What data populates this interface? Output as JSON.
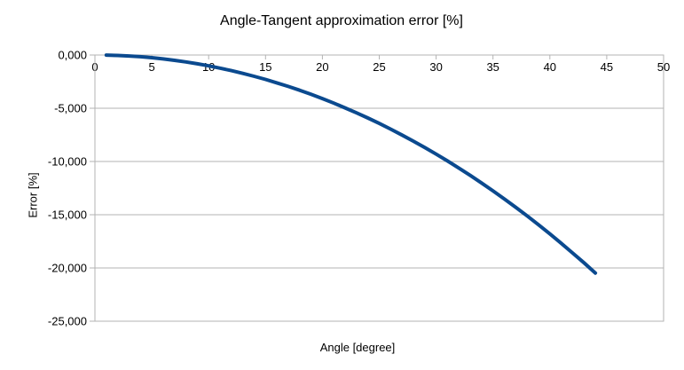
{
  "chart_data": {
    "type": "line",
    "title": "Angle-Tangent approximation error [%]",
    "xlabel": "Angle [degree]",
    "ylabel": "Error [%]",
    "xlim": [
      0,
      50
    ],
    "ylim": [
      -25,
      0
    ],
    "x_ticks": [
      0,
      5,
      10,
      15,
      20,
      25,
      30,
      35,
      40,
      45,
      50
    ],
    "x_tick_labels": [
      "0",
      "5",
      "10",
      "15",
      "20",
      "25",
      "30",
      "35",
      "40",
      "45",
      "50"
    ],
    "y_ticks": [
      0,
      -5,
      -10,
      -15,
      -20,
      -25
    ],
    "y_tick_labels": [
      "0,000",
      "-5,000",
      "-10,000",
      "-15,000",
      "-20,000",
      "-25,000"
    ],
    "grid": "horizontal-only",
    "legend": "none",
    "grid_color": "#b3b3b3",
    "axis_color": "#b3b3b3",
    "text_color": "#000000",
    "background": "#ffffff",
    "series": [
      {
        "name": "Angle-Tangent approximation error",
        "color": "#0b4a8f",
        "line_width": 4,
        "x": [
          1,
          2,
          3,
          4,
          5,
          6,
          7,
          8,
          9,
          10,
          11,
          12,
          13,
          14,
          15,
          16,
          17,
          18,
          19,
          20,
          21,
          22,
          23,
          24,
          25,
          26,
          27,
          28,
          29,
          30,
          31,
          32,
          33,
          34,
          35,
          36,
          37,
          38,
          39,
          40,
          41,
          42,
          43,
          44
        ],
        "y": [
          -0.01,
          -0.041,
          -0.091,
          -0.162,
          -0.254,
          -0.366,
          -0.498,
          -0.651,
          -0.824,
          -1.018,
          -1.232,
          -1.466,
          -1.722,
          -1.998,
          -2.295,
          -2.613,
          -2.952,
          -3.312,
          -3.693,
          -4.095,
          -4.518,
          -4.963,
          -5.43,
          -5.918,
          -6.428,
          -6.96,
          -7.514,
          -8.09,
          -8.689,
          -9.31,
          -9.954,
          -10.62,
          -11.31,
          -12.023,
          -12.759,
          -13.519,
          -14.303,
          -15.111,
          -15.943,
          -16.8,
          -17.681,
          -18.588,
          -19.52,
          -20.477
        ]
      }
    ]
  }
}
